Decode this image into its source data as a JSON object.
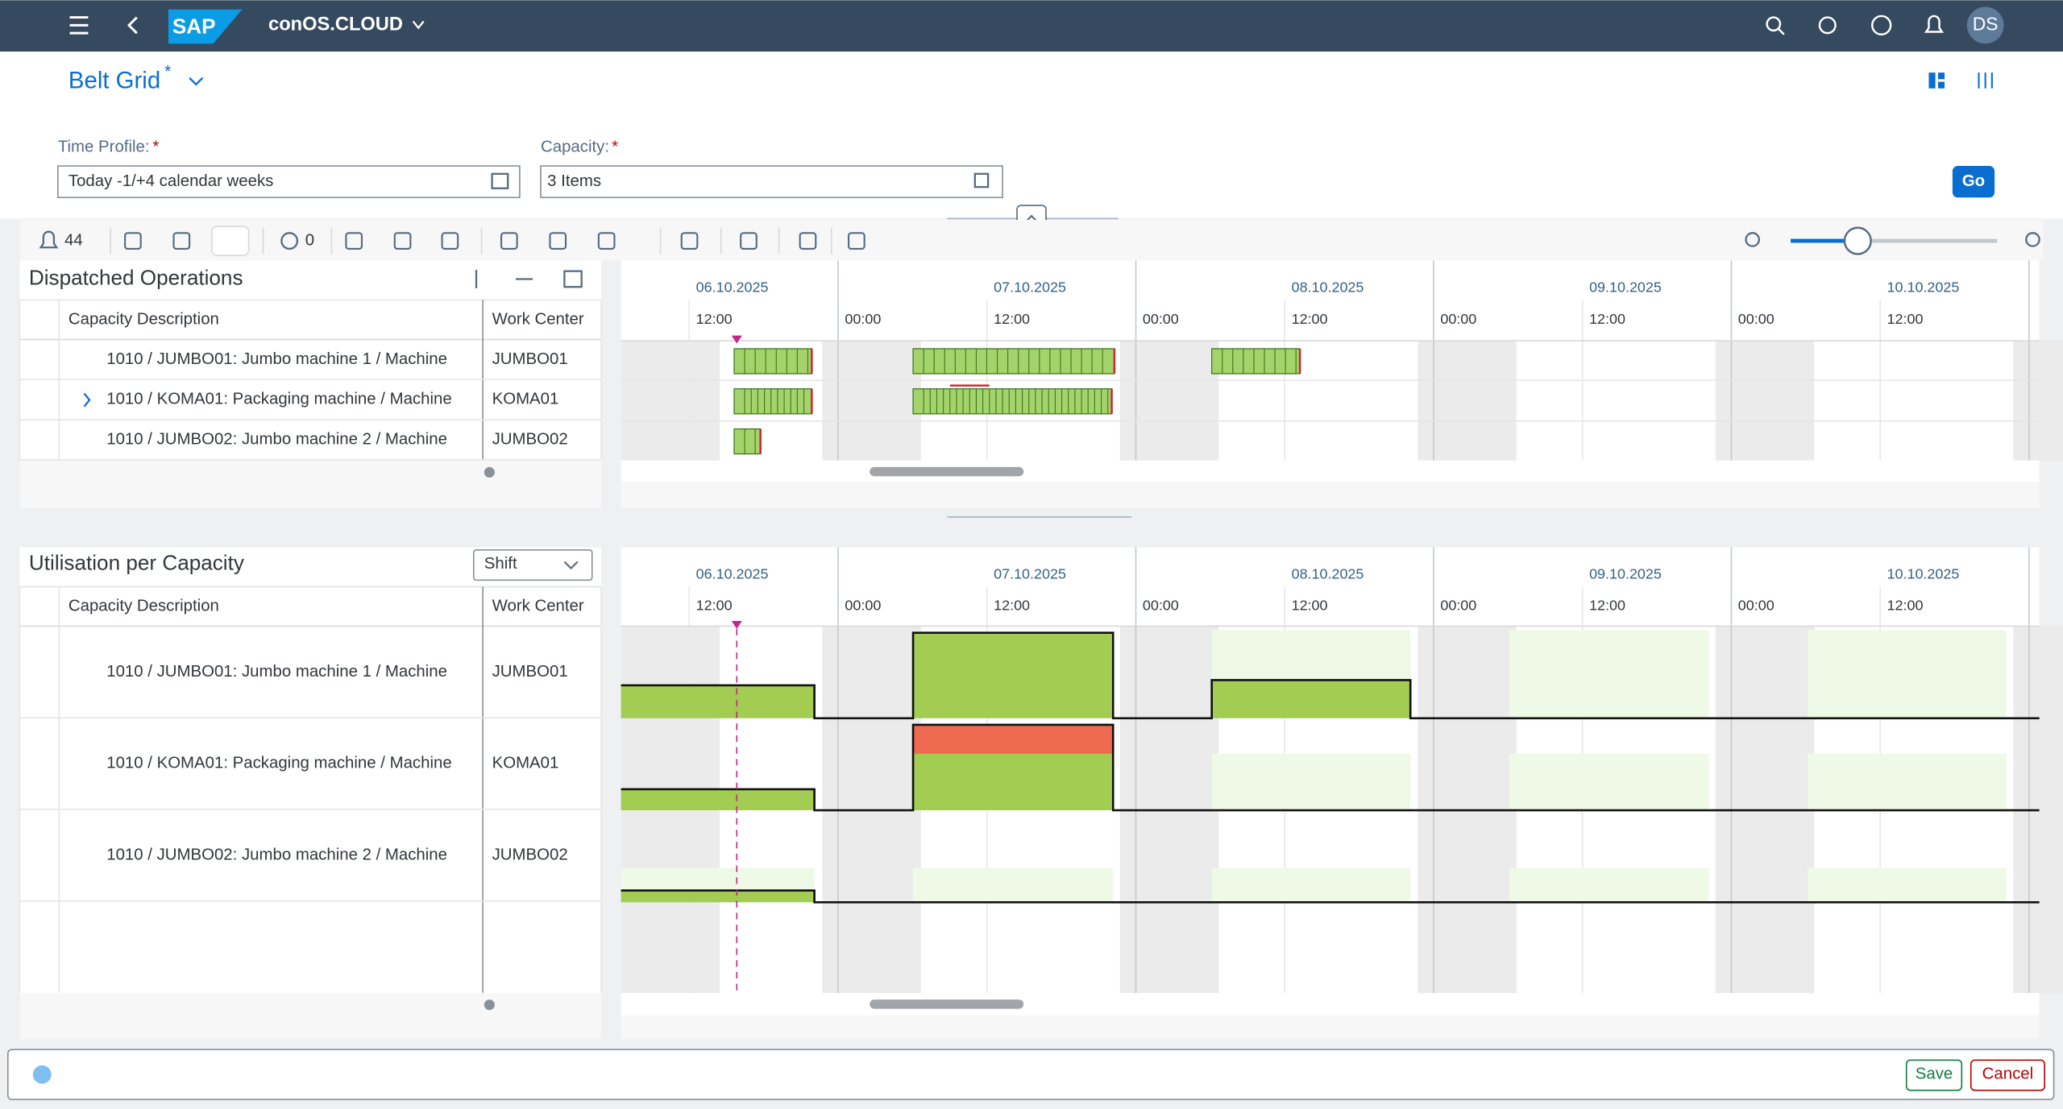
{
  "shell": {
    "logo": "SAP",
    "brand": "conOS.CLOUD",
    "avatar": "DS"
  },
  "page": {
    "title": "Belt Grid",
    "title_marker": "*"
  },
  "filters": [
    {
      "label": "Time Profile:",
      "required": "*",
      "value": "Today -1/+4 calendar weeks"
    },
    {
      "label": "Capacity:",
      "required": "*",
      "value": "3 Items"
    }
  ],
  "go": "Go",
  "toolbar": {
    "alerts": "44",
    "count": "0"
  },
  "dispatched": {
    "title": "Dispatched Operations",
    "columns": [
      "Capacity Description",
      "Work Center"
    ],
    "rows": [
      [
        "1010 / JUMBO01: Jumbo machine 1 / Machine",
        "JUMBO01"
      ],
      [
        "1010 / KOMA01: Packaging machine / Machine",
        "KOMA01"
      ],
      [
        "1010 / JUMBO02: Jumbo machine 2 / Machine",
        "JUMBO02"
      ]
    ]
  },
  "utilisation": {
    "title": "Utilisation per Capacity",
    "mode": "Shift",
    "columns": [
      "Capacity Description",
      "Work Center"
    ],
    "rows": [
      [
        "1010 / JUMBO01: Jumbo machine 1 / Machine",
        "JUMBO01"
      ],
      [
        "1010 / KOMA01: Packaging machine / Machine",
        "KOMA01"
      ],
      [
        "1010 / JUMBO02: Jumbo machine 2 / Machine",
        "JUMBO02"
      ]
    ]
  },
  "timeline": {
    "dates": [
      "06.10.2025",
      "07.10.2025",
      "08.10.2025",
      "09.10.2025",
      "10.10.2025"
    ],
    "times": [
      "12:00",
      "00:00",
      "12:00",
      "00:00",
      "12:00",
      "00:00",
      "12:00",
      "00:00",
      "12:00"
    ]
  },
  "footer": {
    "save": "Save",
    "cancel": "Cancel"
  }
}
